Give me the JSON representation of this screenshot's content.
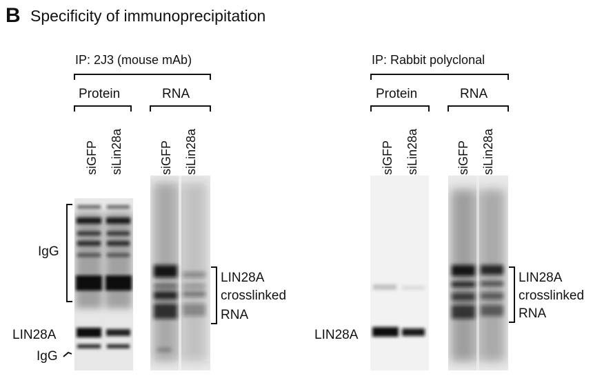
{
  "figure": {
    "panel_letter": "B",
    "title": "Specificity of immunoprecipitation"
  },
  "left_panel": {
    "ip_label": "IP: 2J3 (mouse mAb)",
    "groups": [
      {
        "label": "Protein",
        "lanes": [
          "siGFP",
          "siLin28a"
        ]
      },
      {
        "label": "RNA",
        "lanes": [
          "siGFP",
          "siLin28a"
        ]
      }
    ],
    "labels": {
      "igg_heavy": "IgG",
      "lin28a": "LIN28A",
      "igg_light": "IgG",
      "rna_1": "LIN28A",
      "rna_2": "crosslinked",
      "rna_3": "RNA"
    }
  },
  "right_panel": {
    "ip_label": "IP: Rabbit polyclonal",
    "groups": [
      {
        "label": "Protein",
        "lanes": [
          "siGFP",
          "siLin28a"
        ]
      },
      {
        "label": "RNA",
        "lanes": [
          "siGFP",
          "siLin28a"
        ]
      }
    ],
    "labels": {
      "lin28a": "LIN28A",
      "rna_1": "LIN28A",
      "rna_2": "crosslinked",
      "rna_3": "RNA"
    }
  }
}
